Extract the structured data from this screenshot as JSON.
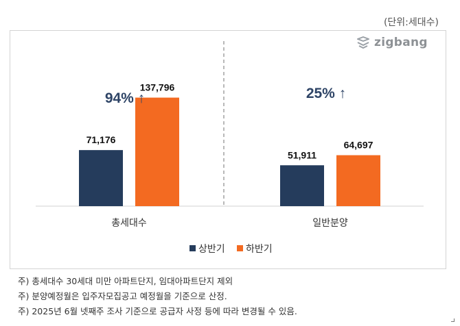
{
  "unit_label": "(단위:세대수)",
  "logo": {
    "text": "zigbang",
    "icon": "zigbang-logo-icon"
  },
  "chart_data": {
    "type": "bar",
    "categories": [
      "총세대수",
      "일반분양"
    ],
    "series": [
      {
        "name": "상반기",
        "color": "#253c5c",
        "values": [
          71176,
          51911
        ]
      },
      {
        "name": "하반기",
        "color": "#f36a21",
        "values": [
          137796,
          64697
        ]
      }
    ],
    "value_labels": [
      [
        "71,176",
        "51,911"
      ],
      [
        "137,796",
        "64,697"
      ]
    ],
    "growth": [
      {
        "label": "94%",
        "arrow": "↑"
      },
      {
        "label": "25%",
        "arrow": "↑"
      }
    ],
    "ylim": [
      0,
      160000
    ],
    "legend_position": "bottom",
    "grid": false
  },
  "notes": [
    "주) 총세대수 30세대 미만 아파트단지, 임대아파트단지 제외",
    "주) 분양예정월은 입주자모집공고 예정월을 기준으로 산정.",
    "주) 2025년 6월 넷째주 조사 기준으로 공급자 사정 등에 따라 변경될 수 있음."
  ]
}
